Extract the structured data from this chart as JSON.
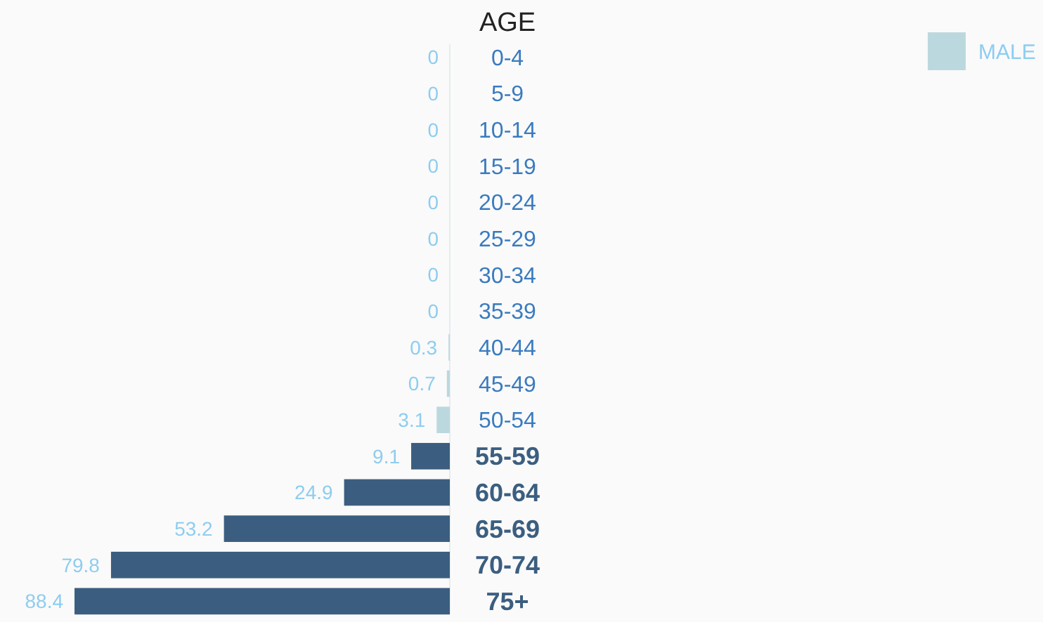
{
  "chart_data": {
    "type": "bar",
    "orientation": "horizontal",
    "relative": false,
    "ylabel": "AGE",
    "categories": [
      "0-4",
      "5-9",
      "10-14",
      "15-19",
      "20-24",
      "25-29",
      "30-34",
      "35-39",
      "40-44",
      "45-49",
      "50-54",
      "55-59",
      "60-64",
      "65-69",
      "70-74",
      "75+"
    ],
    "series": [
      {
        "name": "MALE",
        "color": "#bcd8df",
        "values": [
          0,
          0,
          0,
          0,
          0,
          0,
          0,
          0,
          0.3,
          0.7,
          3.1,
          9.1,
          24.9,
          53.2,
          79.8,
          88.4
        ],
        "colors": [
          "#bcd8df",
          "#bcd8df",
          "#bcd8df",
          "#bcd8df",
          "#bcd8df",
          "#bcd8df",
          "#bcd8df",
          "#bcd8df",
          "#bcd8df",
          "#bcd8df",
          "#bcd8df",
          "#3b5e80",
          "#3b5e80",
          "#3b5e80",
          "#3b5e80",
          "#3b5e80"
        ]
      }
    ],
    "data_labels": true,
    "legend": "top right"
  }
}
